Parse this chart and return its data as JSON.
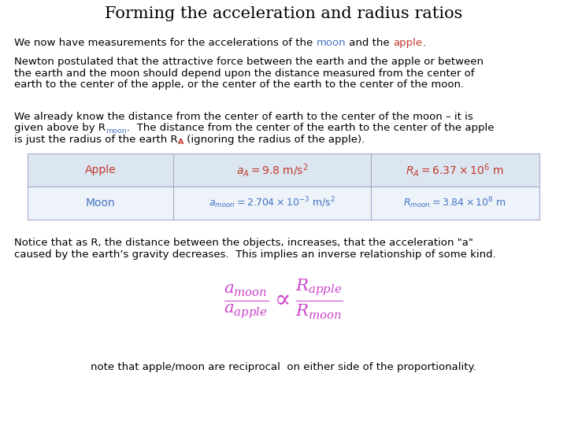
{
  "title": "Forming the acceleration and radius ratios",
  "title_fontsize": 15,
  "bg_color": "#ffffff",
  "text_color": "#000000",
  "moon_color": "#4472c4",
  "apple_color": "#c0392b",
  "magenta_color": "#cc44cc",
  "table_header_bg": "#dce6f1",
  "table_row_bg": "#eef3fa",
  "table_border_color": "#aaaacc",
  "fs_body": 9.5,
  "para4": "Notice that as R, the distance between the objects, increases, that the acceleration \"a\"\ncaused by the earth’s gravity decreases.  This implies an inverse relationship of some kind.",
  "formula_note": "note that apple/moon are reciprocal  on either side of the proportionality."
}
